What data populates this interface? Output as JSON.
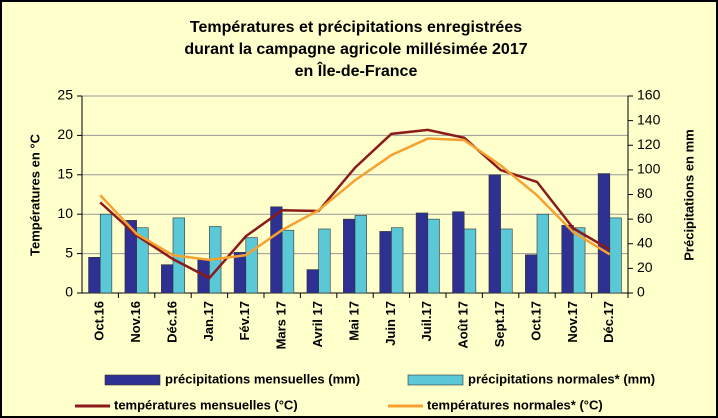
{
  "chart_data": {
    "type": "bar",
    "title": [
      "Températures et précipitations enregistrées",
      "durant la campagne agricole millésimée 2017",
      "en Île-de-France"
    ],
    "ylabel": "Températures en °C",
    "y2label": "Précipitations en mm",
    "categories": [
      "Oct.16",
      "Nov.16",
      "Déc.16",
      "Jan.17",
      "Fév.17",
      "Mars 17",
      "Avril 17",
      "Mai 17",
      "Juin 17",
      "Juil.17",
      "Août 17",
      "Sept.17",
      "Oct.17",
      "Nov.17",
      "Déc.17"
    ],
    "ylim": [
      0,
      25
    ],
    "yticks": [
      0,
      5,
      10,
      15,
      20,
      25
    ],
    "y2lim": [
      0,
      160
    ],
    "y2ticks": [
      0,
      20,
      40,
      60,
      80,
      100,
      120,
      140,
      160
    ],
    "series": [
      {
        "name": "précipitations mensuelles (mm)",
        "type": "bar",
        "axis": "y2",
        "color": "#2e3192",
        "values": [
          29,
          59,
          23,
          27,
          33,
          70,
          19,
          60,
          50,
          65,
          66,
          96,
          31,
          55,
          97
        ]
      },
      {
        "name": "précipitations normales* (mm)",
        "type": "bar",
        "axis": "y2",
        "color": "#5bc8d8",
        "values": [
          64,
          53,
          61,
          54,
          45,
          51,
          52,
          63,
          53,
          60,
          52,
          52,
          64,
          53,
          61
        ]
      },
      {
        "name": "températures mensuelles (°C)",
        "type": "line",
        "color": "#8b1a1a",
        "values": [
          11.5,
          7.3,
          4.3,
          1.9,
          7.2,
          10.5,
          10.4,
          15.9,
          20.2,
          20.7,
          19.7,
          15.6,
          14.1,
          8.2,
          5.5
        ]
      },
      {
        "name": "températures normales* (°C)",
        "type": "line",
        "color": "#f7a030",
        "values": [
          12.4,
          7.5,
          4.8,
          4.2,
          4.8,
          8.0,
          10.5,
          14.3,
          17.5,
          19.6,
          19.4,
          16.2,
          12.4,
          7.7,
          4.9
        ]
      }
    ]
  }
}
